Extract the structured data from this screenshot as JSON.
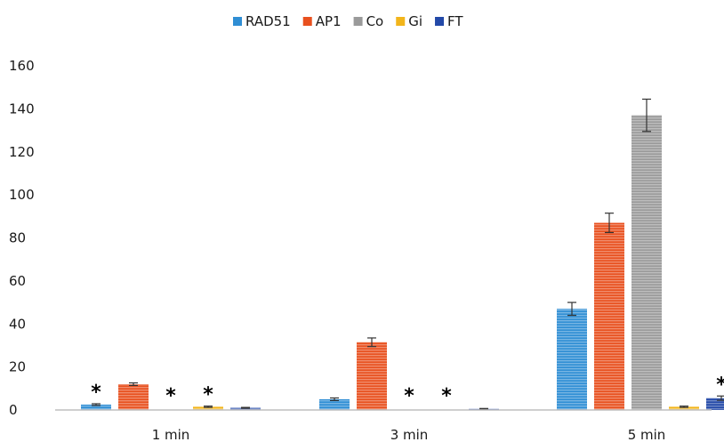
{
  "chart_data": {
    "type": "bar",
    "categories": [
      "1 min",
      "3 min",
      "5 min"
    ],
    "series": [
      {
        "name": "RAD51",
        "color": "#2f8ed4",
        "values": [
          2.5,
          5,
          47
        ],
        "errors": [
          0.4,
          0.6,
          3
        ]
      },
      {
        "name": "AP1",
        "color": "#e8501e",
        "values": [
          12,
          31.5,
          87
        ],
        "errors": [
          0.6,
          2,
          4.5
        ]
      },
      {
        "name": "Co",
        "color": "#9a9a9a",
        "values": [
          0,
          0,
          137
        ],
        "errors": [
          0,
          0,
          7.5
        ]
      },
      {
        "name": "Gi",
        "color": "#f2b51b",
        "values": [
          1.5,
          0,
          1.5
        ],
        "errors": [
          0.3,
          0,
          0.3
        ]
      },
      {
        "name": "FT",
        "color": "#2349a8",
        "values": [
          1,
          0.5,
          5.5
        ],
        "errors": [
          0.2,
          0.2,
          1
        ]
      }
    ],
    "significance": [
      {
        "series": "RAD51",
        "category": "1 min",
        "label": "*"
      },
      {
        "series": "Co",
        "category": "1 min",
        "label": "*"
      },
      {
        "series": "Gi",
        "category": "1 min",
        "label": "*"
      },
      {
        "series": "Co",
        "category": "3 min",
        "label": "*"
      },
      {
        "series": "Gi",
        "category": "3 min",
        "label": "*"
      },
      {
        "series": "FT",
        "category": "5 min",
        "label": "*"
      }
    ],
    "ylim": [
      0,
      160
    ],
    "yticks": [
      0,
      20,
      40,
      60,
      80,
      100,
      120,
      140,
      160
    ],
    "legend_position": "top-center",
    "grid": false
  }
}
